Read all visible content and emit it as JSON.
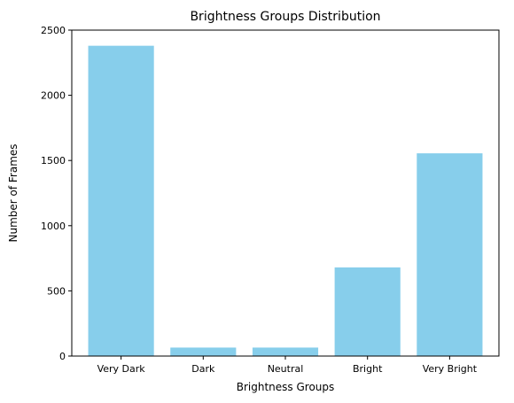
{
  "chart_data": {
    "type": "bar",
    "title": "Brightness Groups Distribution",
    "xlabel": "Brightness Groups",
    "ylabel": "Number of Frames",
    "categories": [
      "Very Dark",
      "Dark",
      "Neutral",
      "Bright",
      "Very Bright"
    ],
    "values": [
      2380,
      65,
      65,
      680,
      1555
    ],
    "ylim": [
      0,
      2500
    ],
    "yticks": [
      0,
      500,
      1000,
      1500,
      2000,
      2500
    ],
    "bar_color": "#87ceeb",
    "grid": false,
    "legend": false
  }
}
